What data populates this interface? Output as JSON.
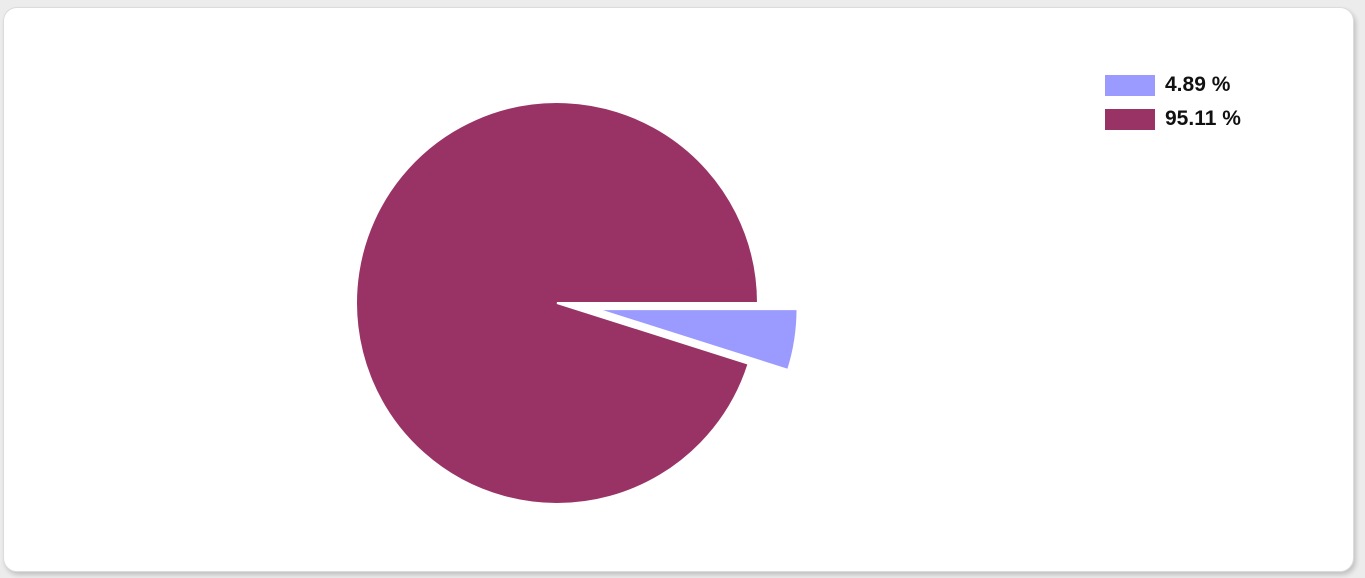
{
  "chart_data": {
    "type": "pie",
    "slices": [
      {
        "label": "4.89 %",
        "value": 4.89,
        "color": "#9b9bff",
        "exploded": true
      },
      {
        "label": "95.11 %",
        "value": 95.11,
        "color": "#993366",
        "exploded": false
      }
    ],
    "legend_position": "top-right"
  }
}
